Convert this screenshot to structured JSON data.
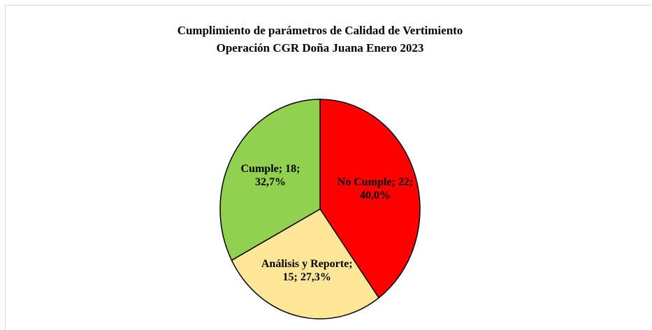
{
  "chart_data": {
    "type": "pie",
    "title": [
      "Cumplimiento de parámetros de Calidad de Vertimiento",
      "Operación CGR Doña Juana Enero 2023"
    ],
    "categories": [
      "No Cumple",
      "Análisis y Reporte",
      "Cumple"
    ],
    "values": [
      22,
      15,
      18
    ],
    "value_labels": [
      [
        "No Cumple; 22;",
        "40,0%"
      ],
      [
        "Análisis y Reporte;",
        "15; 27,3%"
      ],
      [
        "Cumple; 18;",
        "32,7%"
      ]
    ],
    "colors": [
      "#ff0000",
      "#ffe699",
      "#92d050"
    ]
  }
}
